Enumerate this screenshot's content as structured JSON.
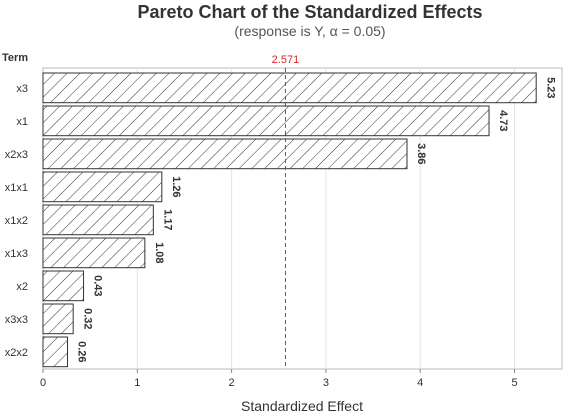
{
  "chart_data": {
    "type": "bar",
    "orientation": "horizontal",
    "title": "Pareto Chart of the Standardized Effects",
    "subtitle": "(response is Y, α = 0.05)",
    "xlabel": "Standardized Effect",
    "ylabel": "Term",
    "categories": [
      "x3",
      "x1",
      "x2x3",
      "x1x1",
      "x1x2",
      "x1x3",
      "x2",
      "x3x3",
      "x2x2"
    ],
    "values": [
      5.23,
      4.73,
      3.86,
      1.26,
      1.17,
      1.08,
      0.43,
      0.32,
      0.26
    ],
    "value_labels": [
      "5.23",
      "4.73",
      "3.86",
      "1.26",
      "1.17",
      "1.08",
      "0.43",
      "0.32",
      "0.26"
    ],
    "xlim": [
      0,
      5.5
    ],
    "xticks": [
      0,
      1,
      2,
      3,
      4,
      5
    ],
    "reference_line": {
      "value": 2.571,
      "label": "2.571",
      "color": "#d62728",
      "style": "dashed"
    },
    "bar_fill": "hatched",
    "grid": true
  }
}
